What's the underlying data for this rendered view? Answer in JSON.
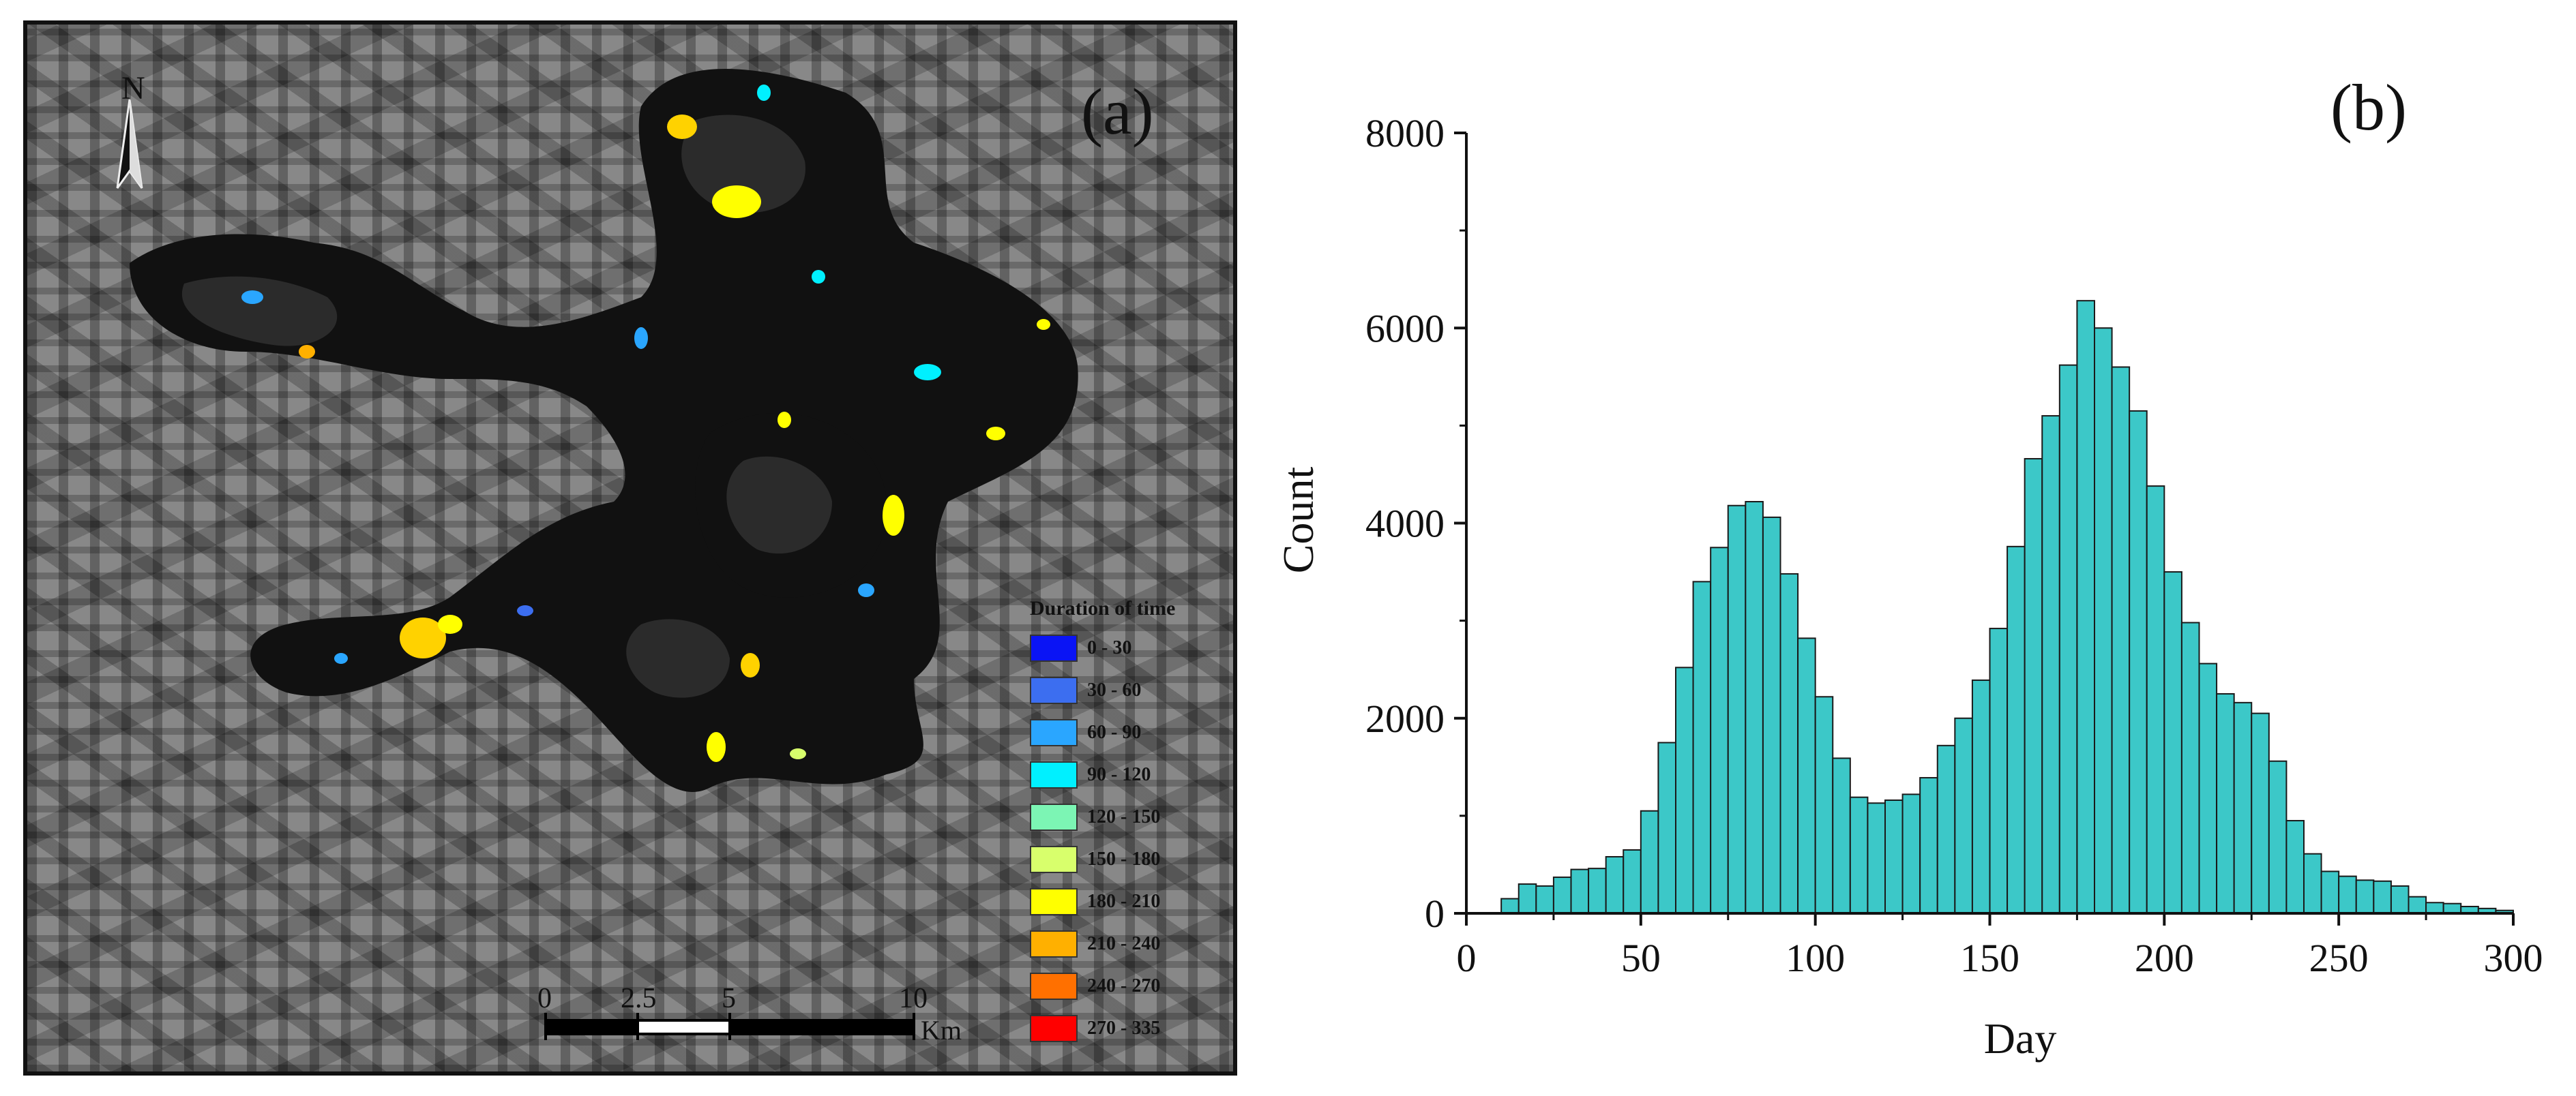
{
  "map_panel": {
    "panel_label": "(a)",
    "north_label": "N",
    "legend": {
      "title": "Duration of time",
      "items": [
        {
          "label": "0 - 30",
          "color": "#0a14f5"
        },
        {
          "label": "30 - 60",
          "color": "#3c6ef0"
        },
        {
          "label": "60 - 90",
          "color": "#2aa6ff"
        },
        {
          "label": "90 - 120",
          "color": "#00f0ff"
        },
        {
          "label": "120 - 150",
          "color": "#7cf5b4"
        },
        {
          "label": "150 - 180",
          "color": "#d8ff6c"
        },
        {
          "label": "180 - 210",
          "color": "#ffff00"
        },
        {
          "label": "210 - 240",
          "color": "#ffb000"
        },
        {
          "label": "240 - 270",
          "color": "#ff7000"
        },
        {
          "label": "270 - 335",
          "color": "#ff0000"
        }
      ]
    },
    "scale_bar": {
      "ticks": [
        "0",
        "2.5",
        "5",
        "10"
      ],
      "unit": "Km"
    }
  },
  "chart_data": {
    "type": "bar",
    "panel_label": "(b)",
    "xlabel": "Day",
    "ylabel": "Count",
    "xlim": [
      0,
      300
    ],
    "ylim": [
      0,
      8000
    ],
    "xticks": [
      0,
      50,
      100,
      150,
      200,
      250,
      300
    ],
    "yticks": [
      0,
      2000,
      4000,
      6000,
      8000
    ],
    "bin_width": 5,
    "bar_color": "#3cc8c8",
    "bin_starts": [
      10,
      15,
      20,
      25,
      30,
      35,
      40,
      45,
      50,
      55,
      60,
      65,
      70,
      75,
      80,
      85,
      90,
      95,
      100,
      105,
      110,
      115,
      120,
      125,
      130,
      135,
      140,
      145,
      150,
      155,
      160,
      165,
      170,
      175,
      180,
      185,
      190,
      195,
      200,
      205,
      210,
      215,
      220,
      225,
      230,
      235,
      240,
      245,
      250,
      255,
      260,
      265,
      270,
      275,
      280,
      285,
      290,
      295
    ],
    "values": [
      150,
      300,
      280,
      370,
      450,
      460,
      580,
      650,
      1050,
      1750,
      2520,
      3400,
      3750,
      4180,
      4220,
      4060,
      3480,
      2820,
      2220,
      1590,
      1190,
      1130,
      1160,
      1220,
      1390,
      1720,
      2000,
      2390,
      2920,
      3760,
      4660,
      5100,
      5620,
      6280,
      6000,
      5600,
      5150,
      4380,
      3500,
      2980,
      2560,
      2250,
      2160,
      2050,
      1560,
      950,
      610,
      430,
      380,
      340,
      330,
      280,
      170,
      110,
      100,
      70,
      50,
      30
    ]
  }
}
